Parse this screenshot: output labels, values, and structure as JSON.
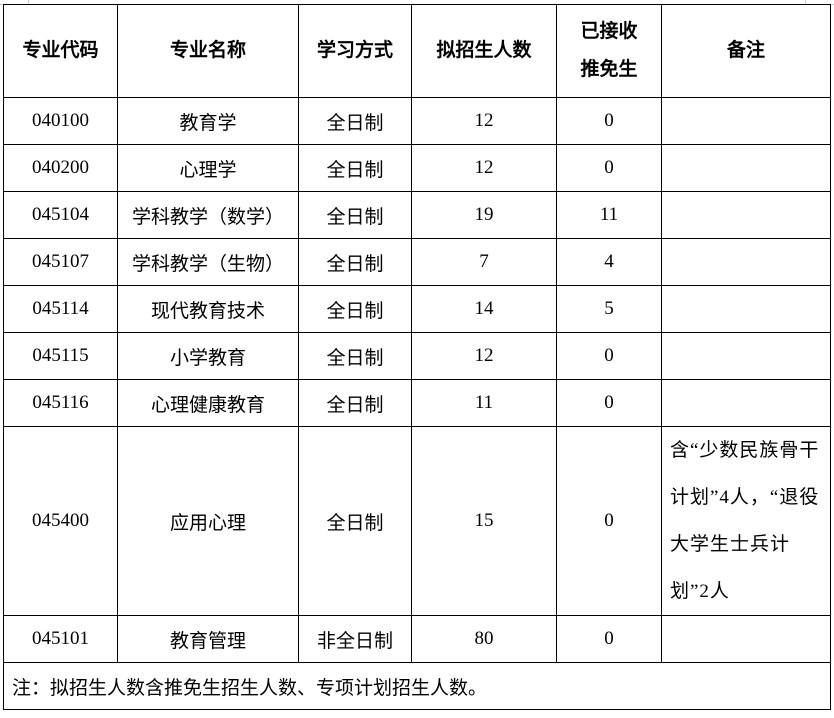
{
  "headers": {
    "code": "专业代码",
    "name": "专业名称",
    "mode": "学习方式",
    "planned": "拟招生人数",
    "accepted_line1": "已接收",
    "accepted_line2": "推免生",
    "remark": "备注"
  },
  "rows": [
    {
      "code": "040100",
      "name": "教育学",
      "mode": "全日制",
      "planned": "12",
      "accepted": "0",
      "remark": ""
    },
    {
      "code": "040200",
      "name": "心理学",
      "mode": "全日制",
      "planned": "12",
      "accepted": "0",
      "remark": ""
    },
    {
      "code": "045104",
      "name": "学科教学（数学）",
      "mode": "全日制",
      "planned": "19",
      "accepted": "11",
      "remark": ""
    },
    {
      "code": "045107",
      "name": "学科教学（生物）",
      "mode": "全日制",
      "planned": "7",
      "accepted": "4",
      "remark": ""
    },
    {
      "code": "045114",
      "name": "现代教育技术",
      "mode": "全日制",
      "planned": "14",
      "accepted": "5",
      "remark": ""
    },
    {
      "code": "045115",
      "name": "小学教育",
      "mode": "全日制",
      "planned": "12",
      "accepted": "0",
      "remark": ""
    },
    {
      "code": "045116",
      "name": "心理健康教育",
      "mode": "全日制",
      "planned": "11",
      "accepted": "0",
      "remark": ""
    },
    {
      "code": "045400",
      "name": "应用心理",
      "mode": "全日制",
      "planned": "15",
      "accepted": "0",
      "remark": "含“少数民族骨干计划”4人，“退役大学生士兵计划”2人"
    },
    {
      "code": "045101",
      "name": "教育管理",
      "mode": "非全日制",
      "planned": "80",
      "accepted": "0",
      "remark": ""
    }
  ],
  "note": "注：拟招生人数含推免生招生人数、专项计划招生人数。"
}
